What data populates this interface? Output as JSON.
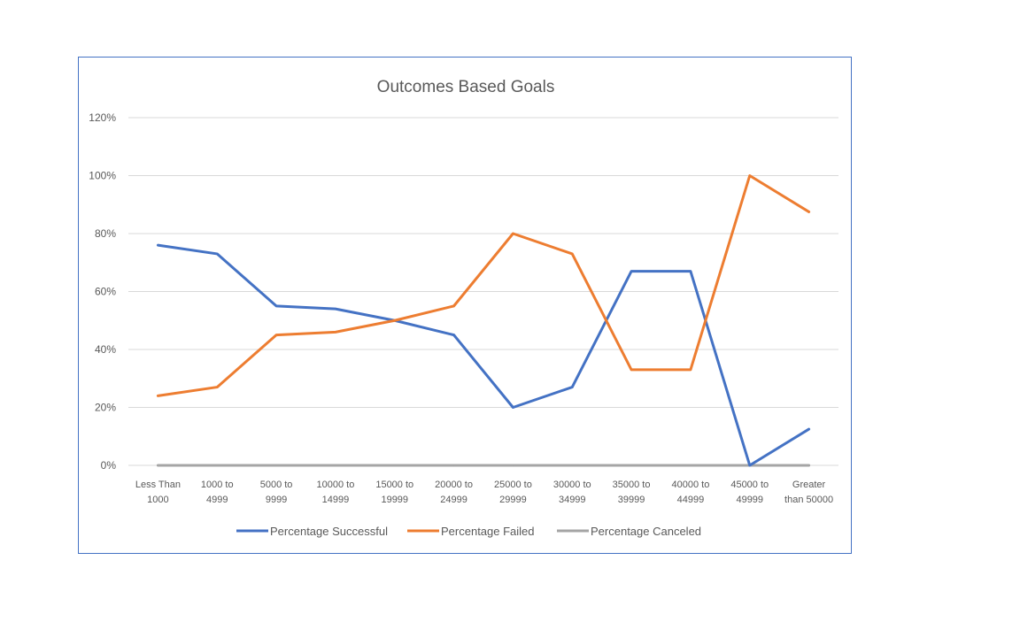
{
  "chart_data": {
    "type": "line",
    "title": "Outcomes Based Goals",
    "xlabel": "",
    "ylabel": "",
    "categories": [
      "Less Than 1000",
      "1000 to 4999",
      "5000 to 9999",
      "10000 to 14999",
      "15000 to 19999",
      "20000 to 24999",
      "25000 to 29999",
      "30000 to 34999",
      "35000 to 39999",
      "40000 to 44999",
      "45000 to 49999",
      "Greater than 50000"
    ],
    "category_lines": [
      [
        "Less Than",
        "1000"
      ],
      [
        "1000 to",
        "4999"
      ],
      [
        "5000 to",
        "9999"
      ],
      [
        "10000 to",
        "14999"
      ],
      [
        "15000 to",
        "19999"
      ],
      [
        "20000 to",
        "24999"
      ],
      [
        "25000 to",
        "29999"
      ],
      [
        "30000 to",
        "34999"
      ],
      [
        "35000 to",
        "39999"
      ],
      [
        "40000 to",
        "44999"
      ],
      [
        "45000 to",
        "49999"
      ],
      [
        "Greater",
        "than 50000"
      ]
    ],
    "series": [
      {
        "name": "Percentage Successful",
        "color": "#4472c4",
        "values": [
          76,
          73,
          55,
          54,
          50,
          45,
          20,
          27,
          67,
          67,
          0,
          12.5
        ]
      },
      {
        "name": "Percentage Failed",
        "color": "#ed7d31",
        "values": [
          24,
          27,
          45,
          46,
          50,
          55,
          80,
          73,
          33,
          33,
          100,
          87.5
        ]
      },
      {
        "name": "Percentage Canceled",
        "color": "#a5a5a5",
        "values": [
          0,
          0,
          0,
          0,
          0,
          0,
          0,
          0,
          0,
          0,
          0,
          0
        ]
      }
    ],
    "ylim": [
      0,
      120
    ],
    "yticks": [
      0,
      20,
      40,
      60,
      80,
      100,
      120
    ],
    "ytick_labels": [
      "0%",
      "20%",
      "40%",
      "60%",
      "80%",
      "100%",
      "120%"
    ],
    "grid": true,
    "legend_position": "bottom"
  }
}
